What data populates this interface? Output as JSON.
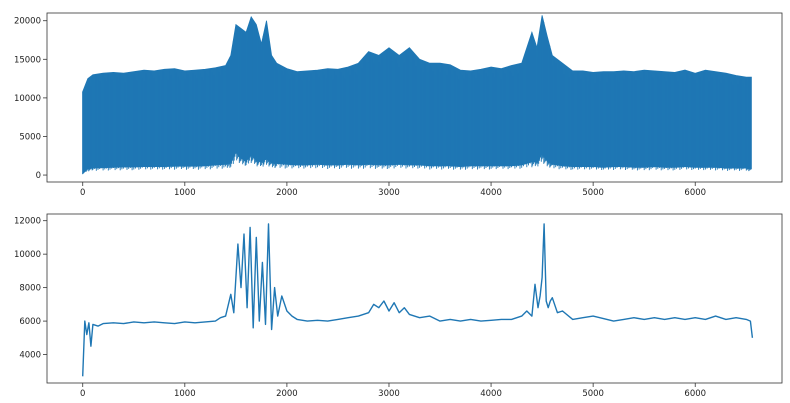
{
  "chart_data": [
    {
      "type": "line",
      "title": "",
      "xlabel": "",
      "ylabel": "",
      "xlim": [
        -350,
        6850
      ],
      "ylim": [
        -900,
        21000
      ],
      "xticks": [
        0,
        1000,
        2000,
        3000,
        4000,
        5000,
        6000
      ],
      "xtick_labels": [
        "0",
        "1000",
        "2000",
        "3000",
        "4000",
        "5000",
        "6000"
      ],
      "yticks": [
        0,
        5000,
        10000,
        15000,
        20000
      ],
      "ytick_labels": [
        "0",
        "5000",
        "10000",
        "15000",
        "20000"
      ],
      "grid": false,
      "color": "#1f77b4",
      "series": [
        {
          "style": "dense high-frequency signal plotted as min/max envelope",
          "x": [
            0,
            50,
            100,
            200,
            300,
            400,
            500,
            600,
            700,
            800,
            900,
            1000,
            1100,
            1200,
            1300,
            1400,
            1450,
            1500,
            1550,
            1600,
            1650,
            1700,
            1750,
            1800,
            1850,
            1900,
            2000,
            2100,
            2200,
            2300,
            2400,
            2500,
            2600,
            2700,
            2800,
            2900,
            3000,
            3100,
            3200,
            3300,
            3400,
            3500,
            3600,
            3700,
            3800,
            3900,
            4000,
            4100,
            4200,
            4300,
            4400,
            4450,
            4500,
            4550,
            4600,
            4700,
            4800,
            4900,
            5000,
            5100,
            5200,
            5300,
            5400,
            5500,
            5600,
            5700,
            5800,
            5900,
            6000,
            6100,
            6200,
            6300,
            6400,
            6500,
            6550
          ],
          "upper": [
            10800,
            12500,
            13000,
            13200,
            13300,
            13200,
            13400,
            13600,
            13500,
            13700,
            13800,
            13500,
            13600,
            13700,
            13900,
            14200,
            15500,
            19500,
            19000,
            18500,
            20500,
            19500,
            17000,
            20000,
            15500,
            14500,
            13800,
            13400,
            13500,
            13600,
            13800,
            13700,
            14000,
            14500,
            16000,
            15500,
            16500,
            15500,
            16500,
            15000,
            14500,
            14500,
            14300,
            13600,
            13500,
            13700,
            14000,
            13800,
            14200,
            14500,
            18500,
            16500,
            20700,
            18000,
            15500,
            14500,
            13500,
            13500,
            13300,
            13400,
            13400,
            13500,
            13400,
            13600,
            13500,
            13400,
            13300,
            13600,
            13200,
            13600,
            13400,
            13200,
            12900,
            12700,
            12700
          ],
          "lower": [
            200,
            800,
            900,
            950,
            1000,
            1050,
            1050,
            1100,
            1100,
            1100,
            1150,
            1150,
            1150,
            1200,
            1300,
            1400,
            1600,
            2900,
            2200,
            1800,
            2600,
            1900,
            1700,
            2100,
            1600,
            1500,
            1400,
            1300,
            1300,
            1400,
            1300,
            1300,
            1400,
            1300,
            1400,
            1300,
            1300,
            1400,
            1300,
            1300,
            1200,
            1200,
            1200,
            1100,
            1200,
            1200,
            1200,
            1200,
            1200,
            1300,
            1700,
            1700,
            2700,
            1800,
            1400,
            1200,
            1100,
            1100,
            1100,
            1000,
            1100,
            1100,
            1000,
            1000,
            1100,
            1000,
            1000,
            1100,
            1000,
            1000,
            1000,
            900,
            900,
            900,
            800
          ]
        }
      ]
    },
    {
      "type": "line",
      "title": "",
      "xlabel": "",
      "ylabel": "",
      "xlim": [
        -350,
        6850
      ],
      "ylim": [
        2300,
        12400
      ],
      "xticks": [
        0,
        1000,
        2000,
        3000,
        4000,
        5000,
        6000
      ],
      "xtick_labels": [
        "0",
        "1000",
        "2000",
        "3000",
        "4000",
        "5000",
        "6000"
      ],
      "yticks": [
        4000,
        6000,
        8000,
        10000,
        12000
      ],
      "ytick_labels": [
        "4000",
        "6000",
        "8000",
        "10000",
        "12000"
      ],
      "grid": false,
      "color": "#1f77b4",
      "series": [
        {
          "style": "smoothed signal (line)",
          "x": [
            0,
            20,
            40,
            60,
            80,
            100,
            150,
            200,
            300,
            400,
            500,
            600,
            700,
            800,
            900,
            1000,
            1100,
            1200,
            1300,
            1350,
            1400,
            1450,
            1480,
            1520,
            1550,
            1580,
            1610,
            1640,
            1670,
            1700,
            1730,
            1760,
            1790,
            1820,
            1850,
            1880,
            1910,
            1950,
            2000,
            2050,
            2100,
            2200,
            2300,
            2400,
            2500,
            2600,
            2700,
            2800,
            2850,
            2900,
            2950,
            3000,
            3050,
            3100,
            3150,
            3200,
            3300,
            3400,
            3500,
            3600,
            3700,
            3800,
            3900,
            4000,
            4100,
            4200,
            4300,
            4350,
            4400,
            4430,
            4460,
            4480,
            4500,
            4520,
            4540,
            4560,
            4580,
            4600,
            4650,
            4700,
            4800,
            4900,
            5000,
            5100,
            5200,
            5300,
            5400,
            5500,
            5600,
            5700,
            5800,
            5900,
            6000,
            6100,
            6200,
            6300,
            6400,
            6500,
            6540,
            6560
          ],
          "y": [
            2700,
            6000,
            5200,
            5900,
            4500,
            5800,
            5700,
            5850,
            5900,
            5850,
            5950,
            5900,
            5950,
            5900,
            5850,
            5950,
            5900,
            5950,
            6000,
            6200,
            6300,
            7600,
            6500,
            10600,
            8000,
            11200,
            6800,
            11600,
            5600,
            11000,
            6000,
            9500,
            5800,
            11800,
            5500,
            8000,
            6300,
            7500,
            6600,
            6300,
            6100,
            6000,
            6050,
            6000,
            6100,
            6200,
            6300,
            6500,
            7000,
            6800,
            7200,
            6600,
            7100,
            6500,
            6800,
            6400,
            6200,
            6300,
            6000,
            6100,
            6000,
            6100,
            6000,
            6050,
            6100,
            6100,
            6300,
            6600,
            6300,
            8200,
            6800,
            7500,
            8600,
            11800,
            7200,
            6800,
            7200,
            7400,
            6500,
            6600,
            6100,
            6200,
            6300,
            6150,
            6000,
            6100,
            6200,
            6100,
            6200,
            6100,
            6200,
            6100,
            6200,
            6100,
            6300,
            6100,
            6200,
            6100,
            6000,
            5000
          ]
        }
      ]
    }
  ]
}
